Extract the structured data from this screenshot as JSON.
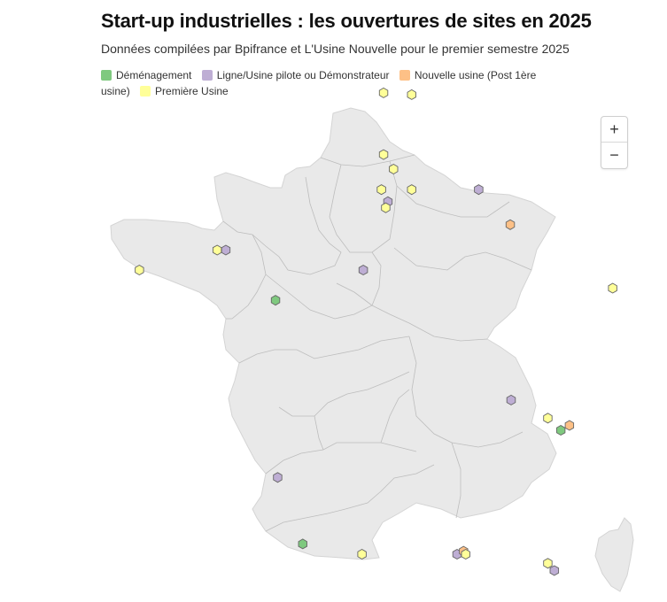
{
  "title": "Start-up industrielles : les ouvertures de sites en 2025",
  "subtitle": "Données compilées par Bpifrance et L'Usine Nouvelle pour le premier semestre 2025",
  "legend": [
    {
      "label": "Déménagement",
      "color": "#7fc97f"
    },
    {
      "label": "Ligne/Usine pilote ou Démonstrateur",
      "color": "#beaed4"
    },
    {
      "label": "Nouvelle usine (Post 1ère usine)",
      "color": "#fdc086"
    },
    {
      "label": "Première Usine",
      "color": "#ffff99"
    }
  ],
  "zoom": {
    "in": "+",
    "out": "−"
  },
  "map": {
    "land_color": "#e9e9e9",
    "border_color": "#bdbdbd"
  },
  "sites": [
    {
      "type": "Première Usine",
      "lon": 2.05,
      "lat": 50.88
    },
    {
      "type": "Première Usine",
      "lon": 2.7,
      "lat": 50.85
    },
    {
      "type": "Première Usine",
      "lon": 2.05,
      "lat": 49.86
    },
    {
      "type": "Première Usine",
      "lon": 2.28,
      "lat": 49.62
    },
    {
      "type": "Première Usine",
      "lon": 2.0,
      "lat": 49.28
    },
    {
      "type": "Première Usine",
      "lon": 2.7,
      "lat": 49.28
    },
    {
      "type": "Ligne/Usine pilote ou Démonstrateur",
      "lon": 2.15,
      "lat": 49.08
    },
    {
      "type": "Première Usine",
      "lon": 2.1,
      "lat": 48.98
    },
    {
      "type": "Ligne/Usine pilote ou Démonstrateur",
      "lon": 4.25,
      "lat": 49.28
    },
    {
      "type": "Nouvelle usine (Post 1ère usine)",
      "lon": 4.98,
      "lat": 48.7
    },
    {
      "type": "Première Usine",
      "lon": -3.6,
      "lat": 47.95
    },
    {
      "type": "Première Usine",
      "lon": -1.8,
      "lat": 48.28
    },
    {
      "type": "Ligne/Usine pilote ou Démonstrateur",
      "lon": -1.6,
      "lat": 48.28
    },
    {
      "type": "Ligne/Usine pilote ou Démonstrateur",
      "lon": 1.58,
      "lat": 47.95
    },
    {
      "type": "Déménagement",
      "lon": -0.45,
      "lat": 47.45
    },
    {
      "type": "Première Usine",
      "lon": 7.35,
      "lat": 47.65
    },
    {
      "type": "Ligne/Usine pilote ou Démonstrateur",
      "lon": 5.0,
      "lat": 45.8
    },
    {
      "type": "Première Usine",
      "lon": 5.85,
      "lat": 45.5
    },
    {
      "type": "Nouvelle usine (Post 1ère usine)",
      "lon": 6.35,
      "lat": 45.38
    },
    {
      "type": "Déménagement",
      "lon": 6.15,
      "lat": 45.3
    },
    {
      "type": "Ligne/Usine pilote ou Démonstrateur",
      "lon": -0.4,
      "lat": 44.52
    },
    {
      "type": "Déménagement",
      "lon": 0.18,
      "lat": 43.42
    },
    {
      "type": "Première Usine",
      "lon": 1.55,
      "lat": 43.25
    },
    {
      "type": "Ligne/Usine pilote ou Démonstrateur",
      "lon": 3.75,
      "lat": 43.25
    },
    {
      "type": "Nouvelle usine (Post 1ère usine)",
      "lon": 3.9,
      "lat": 43.3
    },
    {
      "type": "Première Usine",
      "lon": 3.95,
      "lat": 43.25
    },
    {
      "type": "Première Usine",
      "lon": 5.85,
      "lat": 43.1
    },
    {
      "type": "Ligne/Usine pilote ou Démonstrateur",
      "lon": 6.0,
      "lat": 42.98
    }
  ]
}
